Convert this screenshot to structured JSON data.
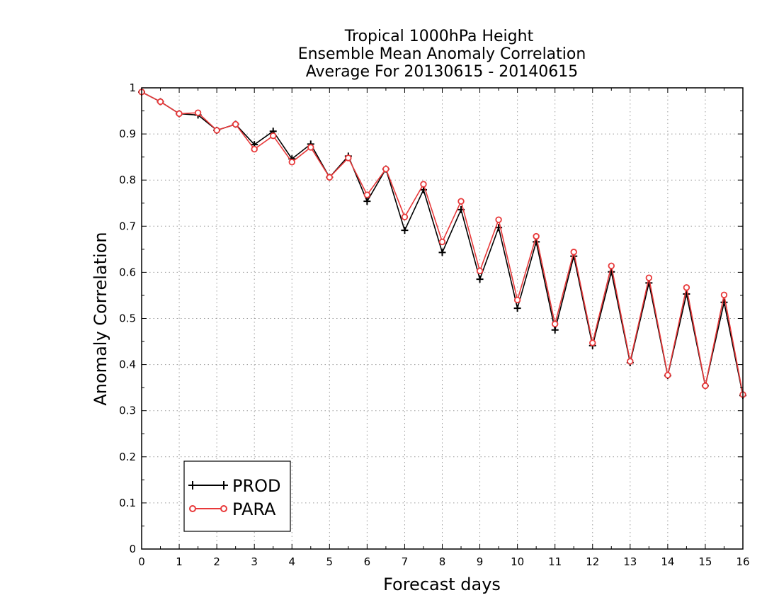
{
  "chart_data": {
    "type": "line",
    "title_lines": [
      "Tropical 1000hPa Height",
      "Ensemble Mean Anomaly Correlation",
      "Average For 20130615 - 20140615"
    ],
    "xlabel": "Forecast days",
    "ylabel": "Anomaly Correlation",
    "xlim": [
      0,
      16
    ],
    "ylim": [
      0,
      1
    ],
    "x_ticks": [
      0,
      1,
      2,
      3,
      4,
      5,
      6,
      7,
      8,
      9,
      10,
      11,
      12,
      13,
      14,
      15,
      16
    ],
    "y_ticks": [
      0,
      0.1,
      0.2,
      0.3,
      0.4,
      0.5,
      0.6,
      0.7,
      0.8,
      0.9,
      1
    ],
    "y_tick_labels": [
      "0",
      "0.1",
      "0.2",
      "0.3",
      "0.4",
      "0.5",
      "0.6",
      "0.7",
      "0.8",
      "0.9",
      "1"
    ],
    "grid": true,
    "legend_position": "bottom-left",
    "x": [
      0,
      0.5,
      1,
      1.5,
      2,
      2.5,
      3,
      3.5,
      4,
      4.5,
      5,
      5.5,
      6,
      6.5,
      7,
      7.5,
      8,
      8.5,
      9,
      9.5,
      10,
      10.5,
      11,
      11.5,
      12,
      12.5,
      13,
      13.5,
      14,
      14.5,
      15,
      15.5,
      16
    ],
    "series": [
      {
        "name": "PROD",
        "color": "#000000",
        "marker": "plus",
        "values": [
          0.991,
          0.97,
          0.944,
          0.941,
          0.908,
          0.921,
          0.877,
          0.906,
          0.846,
          0.878,
          0.806,
          0.852,
          0.754,
          0.824,
          0.691,
          0.779,
          0.643,
          0.736,
          0.585,
          0.697,
          0.522,
          0.666,
          0.475,
          0.635,
          0.441,
          0.601,
          0.404,
          0.577,
          0.376,
          0.553,
          0.354,
          0.535,
          0.333
        ]
      },
      {
        "name": "PARA",
        "color": "#e8393a",
        "marker": "circle",
        "values": [
          0.991,
          0.97,
          0.944,
          0.946,
          0.908,
          0.921,
          0.867,
          0.896,
          0.839,
          0.871,
          0.806,
          0.848,
          0.768,
          0.824,
          0.72,
          0.791,
          0.666,
          0.754,
          0.603,
          0.714,
          0.54,
          0.678,
          0.488,
          0.644,
          0.447,
          0.614,
          0.407,
          0.588,
          0.377,
          0.567,
          0.354,
          0.551,
          0.335
        ]
      }
    ]
  }
}
